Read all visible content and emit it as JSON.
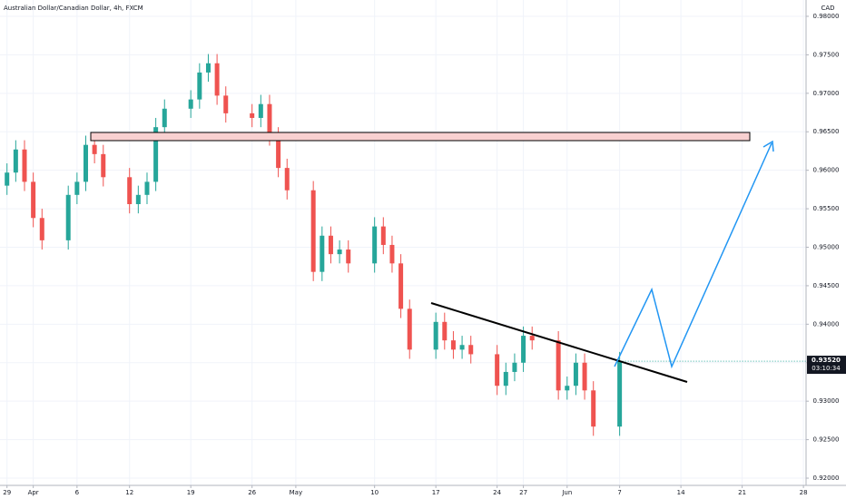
{
  "chart_data": {
    "type": "candlestick",
    "title": "Australian Dollar/Canadian Dollar, 4h, FXCM",
    "currency": "CAD",
    "last_price": "0.93520",
    "countdown": "03:10:34",
    "up_color": "#26a69a",
    "down_color": "#ef5350",
    "grid": true,
    "x": [
      0,
      1,
      2,
      3,
      4,
      7,
      8,
      9,
      10,
      11,
      14,
      15,
      16,
      17,
      18,
      21,
      22,
      23,
      24,
      25,
      28,
      29,
      30,
      31,
      32,
      35,
      36,
      37,
      38,
      39,
      42,
      43,
      44,
      45,
      46,
      49,
      50,
      51,
      52,
      53,
      56,
      57,
      58,
      59,
      60,
      63,
      64,
      65,
      66,
      67,
      70
    ],
    "open": [
      0.958,
      0.9597,
      0.9627,
      0.9585,
      0.9538,
      0.9509,
      0.9568,
      0.9585,
      0.9633,
      0.9621,
      0.9591,
      0.9556,
      0.9568,
      0.9585,
      0.9656,
      0.968,
      0.9692,
      0.9727,
      0.9739,
      0.9697,
      0.9674,
      0.9668,
      0.9686,
      0.9644,
      0.9603,
      0.9574,
      0.9468,
      0.9515,
      0.9491,
      0.9497,
      0.9479,
      0.9527,
      0.9503,
      0.9479,
      0.942,
      0.9367,
      0.9403,
      0.9379,
      0.9367,
      0.9373,
      0.9361,
      0.932,
      0.9338,
      0.935,
      0.9385,
      0.9379,
      0.9314,
      0.932,
      0.935,
      0.9314,
      0.9267
    ],
    "high": [
      0.9609,
      0.9639,
      0.9639,
      0.9597,
      0.955,
      0.958,
      0.9597,
      0.9645,
      0.9645,
      0.9633,
      0.9603,
      0.958,
      0.9597,
      0.9668,
      0.9692,
      0.9704,
      0.9739,
      0.9751,
      0.9751,
      0.9709,
      0.9686,
      0.9698,
      0.9698,
      0.9656,
      0.9615,
      0.9586,
      0.9527,
      0.9527,
      0.9509,
      0.9509,
      0.9539,
      0.9539,
      0.9515,
      0.9491,
      0.9432,
      0.9415,
      0.9415,
      0.9391,
      0.9385,
      0.9385,
      0.9373,
      0.935,
      0.9362,
      0.9397,
      0.9397,
      0.9391,
      0.9332,
      0.9362,
      0.9362,
      0.9326,
      0.9364
    ],
    "low": [
      0.9568,
      0.9585,
      0.9573,
      0.9526,
      0.9497,
      0.9497,
      0.9556,
      0.9573,
      0.9609,
      0.9579,
      0.9544,
      0.9544,
      0.9556,
      0.9573,
      0.9644,
      0.9668,
      0.968,
      0.9715,
      0.9685,
      0.9662,
      0.9656,
      0.9656,
      0.9632,
      0.9591,
      0.9562,
      0.9456,
      0.9456,
      0.9479,
      0.9479,
      0.9467,
      0.9467,
      0.9491,
      0.9467,
      0.9408,
      0.9355,
      0.9355,
      0.9367,
      0.9355,
      0.9355,
      0.9349,
      0.9308,
      0.9308,
      0.9326,
      0.9338,
      0.9367,
      0.9302,
      0.9302,
      0.9308,
      0.9302,
      0.9255,
      0.9255
    ],
    "close": [
      0.9597,
      0.9627,
      0.9585,
      0.9538,
      0.9509,
      0.9568,
      0.9585,
      0.9633,
      0.9621,
      0.9591,
      0.9556,
      0.9568,
      0.9585,
      0.9656,
      0.968,
      0.9692,
      0.9727,
      0.9739,
      0.9697,
      0.9674,
      0.9668,
      0.9686,
      0.9644,
      0.9603,
      0.9574,
      0.9468,
      0.9515,
      0.9491,
      0.9497,
      0.9479,
      0.9527,
      0.9503,
      0.9479,
      0.942,
      0.9367,
      0.9403,
      0.9379,
      0.9367,
      0.9373,
      0.9361,
      0.932,
      0.9338,
      0.935,
      0.9385,
      0.9379,
      0.9314,
      0.932,
      0.935,
      0.9314,
      0.9267,
      0.9352
    ],
    "xlim": [
      -0.8,
      91.3
    ],
    "xticks": [
      {
        "value": 0,
        "label": "29"
      },
      {
        "value": 3,
        "label": "Apr"
      },
      {
        "value": 8,
        "label": "6"
      },
      {
        "value": 14,
        "label": "12"
      },
      {
        "value": 21,
        "label": "19"
      },
      {
        "value": 28,
        "label": "26"
      },
      {
        "value": 33,
        "label": "May"
      },
      {
        "value": 42,
        "label": "10"
      },
      {
        "value": 49,
        "label": "17"
      },
      {
        "value": 56,
        "label": "24"
      },
      {
        "value": 59,
        "label": "27"
      },
      {
        "value": 64,
        "label": "Jun"
      },
      {
        "value": 70,
        "label": "7"
      },
      {
        "value": 77,
        "label": "14"
      },
      {
        "value": 84,
        "label": "21"
      },
      {
        "value": 91,
        "label": "28"
      }
    ],
    "ylim": [
      0.91906,
      0.98212
    ],
    "yticks": [
      {
        "value": 0.92,
        "label": "0.92000"
      },
      {
        "value": 0.925,
        "label": "0.92500"
      },
      {
        "value": 0.93,
        "label": "0.93000"
      },
      {
        "value": 0.935,
        "label": "0.93500"
      },
      {
        "value": 0.94,
        "label": "0.94000"
      },
      {
        "value": 0.945,
        "label": "0.94500"
      },
      {
        "value": 0.95,
        "label": "0.95000"
      },
      {
        "value": 0.955,
        "label": "0.95500"
      },
      {
        "value": 0.96,
        "label": "0.96000"
      },
      {
        "value": 0.965,
        "label": "0.96500"
      },
      {
        "value": 0.97,
        "label": "0.97000"
      },
      {
        "value": 0.975,
        "label": "0.97500"
      },
      {
        "value": 0.98,
        "label": "0.98000"
      }
    ]
  }
}
